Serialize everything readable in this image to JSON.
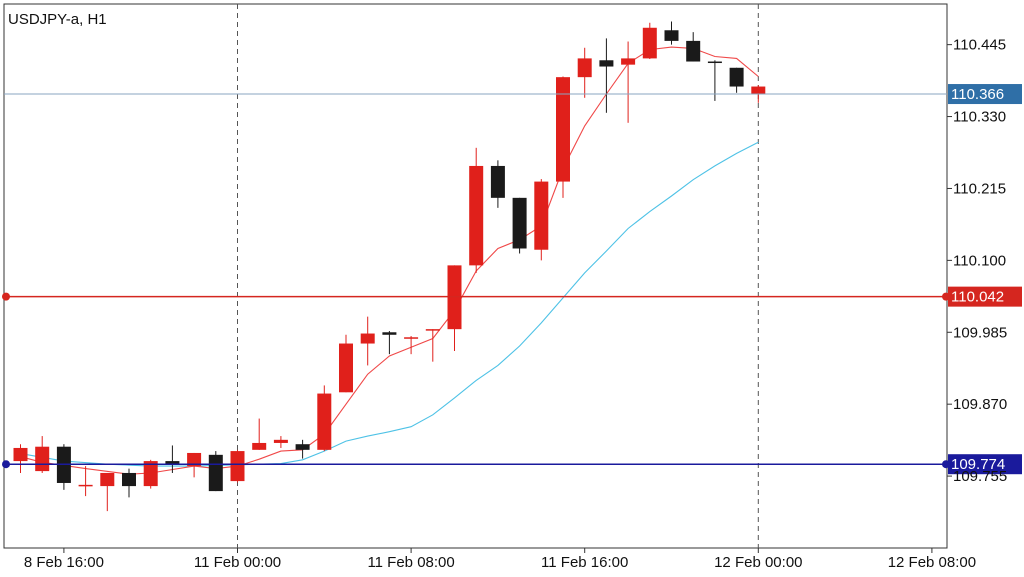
{
  "header": {
    "symbol_timeframe": "USDJPY-a, H1"
  },
  "colors": {
    "bull_candle": "#e0201b",
    "bear_candle": "#1a1a1a",
    "fast_ma": "#f04848",
    "slow_ma": "#4ec2e6",
    "current_price_line": "#8aa6c1",
    "current_price_tag": "#2f6fa7",
    "red_level": "#d5261f",
    "blue_level": "#1a1a9c",
    "vgrid": "#555555"
  },
  "chart_data": {
    "type": "candlestick",
    "title": "USDJPY-a, H1",
    "ylim": [
      109.64,
      110.51
    ],
    "y_ticks": [
      109.755,
      109.87,
      109.985,
      110.1,
      110.215,
      110.33,
      110.445
    ],
    "y_tick_labels": [
      "109.755",
      "109.870",
      "109.985",
      "110.100",
      "110.215",
      "110.330",
      "110.445"
    ],
    "x_tick_labels": [
      {
        "label": "8 Feb 16:00",
        "index": 2
      },
      {
        "label": "11 Feb 00:00",
        "index": 10
      },
      {
        "label": "11 Feb 08:00",
        "index": 18
      },
      {
        "label": "11 Feb 16:00",
        "index": 26
      },
      {
        "label": "12 Feb 00:00",
        "index": 34
      },
      {
        "label": "12 Feb 08:00",
        "index": 42
      }
    ],
    "period_separator_indices": [
      10,
      34
    ],
    "candles": [
      {
        "o": 109.779,
        "h": 109.806,
        "l": 109.76,
        "c": 109.8
      },
      {
        "o": 109.763,
        "h": 109.819,
        "l": 109.76,
        "c": 109.802
      },
      {
        "o": 109.802,
        "h": 109.806,
        "l": 109.733,
        "c": 109.744
      },
      {
        "o": 109.741,
        "h": 109.771,
        "l": 109.723,
        "c": 109.741
      },
      {
        "o": 109.739,
        "h": 109.76,
        "l": 109.699,
        "c": 109.76
      },
      {
        "o": 109.76,
        "h": 109.767,
        "l": 109.721,
        "c": 109.739
      },
      {
        "o": 109.739,
        "h": 109.781,
        "l": 109.735,
        "c": 109.779
      },
      {
        "o": 109.779,
        "h": 109.804,
        "l": 109.76,
        "c": 109.773
      },
      {
        "o": 109.771,
        "h": 109.792,
        "l": 109.753,
        "c": 109.792
      },
      {
        "o": 109.789,
        "h": 109.795,
        "l": 109.731,
        "c": 109.731
      },
      {
        "o": 109.747,
        "h": 109.797,
        "l": 109.745,
        "c": 109.795
      },
      {
        "o": 109.797,
        "h": 109.847,
        "l": 109.797,
        "c": 109.808
      },
      {
        "o": 109.808,
        "h": 109.819,
        "l": 109.8,
        "c": 109.813
      },
      {
        "o": 109.806,
        "h": 109.813,
        "l": 109.783,
        "c": 109.797
      },
      {
        "o": 109.797,
        "h": 109.9,
        "l": 109.795,
        "c": 109.887
      },
      {
        "o": 109.889,
        "h": 109.981,
        "l": 109.889,
        "c": 109.967
      },
      {
        "o": 109.967,
        "h": 110.01,
        "l": 109.932,
        "c": 109.983
      },
      {
        "o": 109.985,
        "h": 109.987,
        "l": 109.95,
        "c": 109.981
      },
      {
        "o": 109.977,
        "h": 109.979,
        "l": 109.95,
        "c": 109.977
      },
      {
        "o": 109.99,
        "h": 109.99,
        "l": 109.938,
        "c": 109.99
      },
      {
        "o": 109.99,
        "h": 110.092,
        "l": 109.955,
        "c": 110.092
      },
      {
        "o": 110.092,
        "h": 110.28,
        "l": 110.08,
        "c": 110.251
      },
      {
        "o": 110.251,
        "h": 110.26,
        "l": 110.184,
        "c": 110.2
      },
      {
        "o": 110.2,
        "h": 110.2,
        "l": 110.111,
        "c": 110.119
      },
      {
        "o": 110.117,
        "h": 110.23,
        "l": 110.1,
        "c": 110.226
      },
      {
        "o": 110.226,
        "h": 110.394,
        "l": 110.2,
        "c": 110.393
      },
      {
        "o": 110.393,
        "h": 110.44,
        "l": 110.36,
        "c": 110.423
      },
      {
        "o": 110.42,
        "h": 110.455,
        "l": 110.336,
        "c": 110.41
      },
      {
        "o": 110.413,
        "h": 110.45,
        "l": 110.32,
        "c": 110.423
      },
      {
        "o": 110.423,
        "h": 110.48,
        "l": 110.422,
        "c": 110.472
      },
      {
        "o": 110.468,
        "h": 110.482,
        "l": 110.445,
        "c": 110.451
      },
      {
        "o": 110.451,
        "h": 110.465,
        "l": 110.418,
        "c": 110.418
      },
      {
        "o": 110.418,
        "h": 110.42,
        "l": 110.355,
        "c": 110.416
      },
      {
        "o": 110.408,
        "h": 110.408,
        "l": 110.368,
        "c": 110.378
      },
      {
        "o": 110.366,
        "h": 110.38,
        "l": 110.352,
        "c": 110.378
      }
    ],
    "fast_ma": [
      {
        "i": 0,
        "v": 109.786
      },
      {
        "i": 1,
        "v": 109.777
      },
      {
        "i": 3,
        "v": 109.767
      },
      {
        "i": 5,
        "v": 109.758
      },
      {
        "i": 6,
        "v": 109.76
      },
      {
        "i": 8,
        "v": 109.771
      },
      {
        "i": 9,
        "v": 109.767
      },
      {
        "i": 10,
        "v": 109.771
      },
      {
        "i": 11,
        "v": 109.782
      },
      {
        "i": 12,
        "v": 109.795
      },
      {
        "i": 13,
        "v": 109.797
      },
      {
        "i": 14,
        "v": 109.822
      },
      {
        "i": 15,
        "v": 109.87
      },
      {
        "i": 16,
        "v": 109.918
      },
      {
        "i": 17,
        "v": 109.947
      },
      {
        "i": 18,
        "v": 109.961
      },
      {
        "i": 19,
        "v": 109.975
      },
      {
        "i": 20,
        "v": 110.02
      },
      {
        "i": 21,
        "v": 110.083
      },
      {
        "i": 22,
        "v": 110.119
      },
      {
        "i": 23,
        "v": 110.133
      },
      {
        "i": 24,
        "v": 110.155
      },
      {
        "i": 25,
        "v": 110.247
      },
      {
        "i": 26,
        "v": 110.315
      },
      {
        "i": 27,
        "v": 110.366
      },
      {
        "i": 28,
        "v": 110.415
      },
      {
        "i": 29,
        "v": 110.437
      },
      {
        "i": 30,
        "v": 110.441
      },
      {
        "i": 31,
        "v": 110.439
      },
      {
        "i": 32,
        "v": 110.426
      },
      {
        "i": 33,
        "v": 110.423
      },
      {
        "i": 34,
        "v": 110.394
      }
    ],
    "slow_ma": [
      {
        "i": 0,
        "v": 109.791
      },
      {
        "i": 2,
        "v": 109.779
      },
      {
        "i": 4,
        "v": 109.774
      },
      {
        "i": 6,
        "v": 109.771
      },
      {
        "i": 8,
        "v": 109.771
      },
      {
        "i": 10,
        "v": 109.773
      },
      {
        "i": 12,
        "v": 109.775
      },
      {
        "i": 13,
        "v": 109.781
      },
      {
        "i": 14,
        "v": 109.795
      },
      {
        "i": 15,
        "v": 109.811
      },
      {
        "i": 16,
        "v": 109.819
      },
      {
        "i": 17,
        "v": 109.826
      },
      {
        "i": 18,
        "v": 109.834
      },
      {
        "i": 19,
        "v": 109.853
      },
      {
        "i": 20,
        "v": 109.88
      },
      {
        "i": 21,
        "v": 109.908
      },
      {
        "i": 22,
        "v": 109.932
      },
      {
        "i": 23,
        "v": 109.963
      },
      {
        "i": 24,
        "v": 110.0
      },
      {
        "i": 25,
        "v": 110.04
      },
      {
        "i": 26,
        "v": 110.08
      },
      {
        "i": 27,
        "v": 110.115
      },
      {
        "i": 28,
        "v": 110.151
      },
      {
        "i": 29,
        "v": 110.178
      },
      {
        "i": 30,
        "v": 110.203
      },
      {
        "i": 31,
        "v": 110.229
      },
      {
        "i": 32,
        "v": 110.251
      },
      {
        "i": 33,
        "v": 110.271
      },
      {
        "i": 34,
        "v": 110.289
      }
    ],
    "current_price": {
      "value": 110.366,
      "label": "110.366"
    },
    "levels": [
      {
        "name": "red-level",
        "value": 110.042,
        "label": "110.042"
      },
      {
        "name": "blue-level",
        "value": 109.774,
        "label": "109.774"
      }
    ]
  }
}
